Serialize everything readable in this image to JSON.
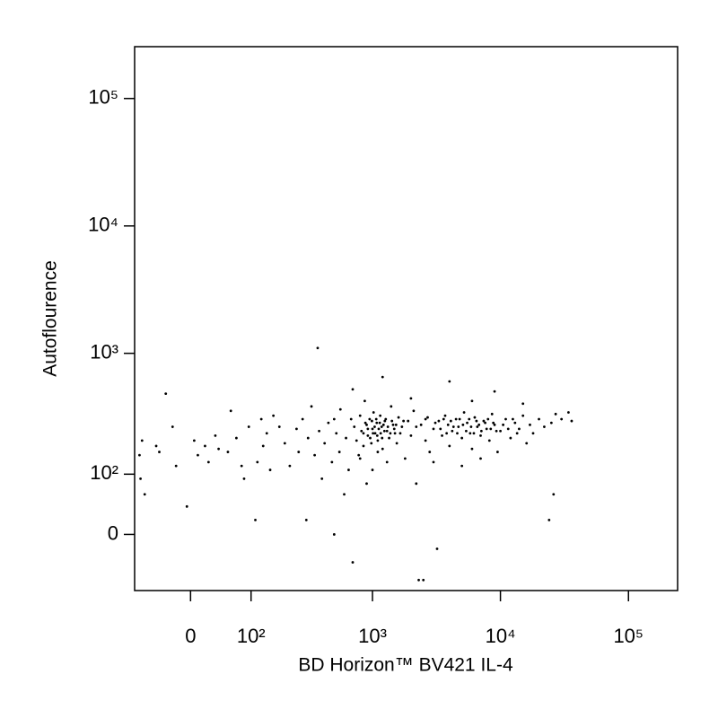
{
  "chart_data": {
    "type": "scatter",
    "x_label": "BD Horizon™ BV421 IL-4",
    "y_label": "Autoflourence",
    "xscale": "biexponential",
    "yscale": "biexponential",
    "xlim": [
      -90,
      242000
    ],
    "ylim": [
      -91,
      255000
    ],
    "xticks": [
      0,
      {
        "value": 100,
        "label": "10²"
      },
      {
        "value": 1000,
        "label": "10³"
      },
      {
        "value": 10000,
        "label": "10⁴"
      },
      {
        "value": 100000,
        "label": "10⁵"
      }
    ],
    "yticks": [
      0,
      {
        "value": 100,
        "label": "10²"
      },
      {
        "value": 1000,
        "label": "10³"
      },
      {
        "value": 10000,
        "label": "10⁴"
      },
      {
        "value": 100000,
        "label": "10⁵"
      }
    ],
    "color": "#000000",
    "x": [
      -80,
      -78,
      -75,
      -70,
      -50,
      -45,
      -35,
      -25,
      -20,
      -5,
      5,
      10,
      20,
      25,
      35,
      40,
      55,
      60,
      70,
      80,
      85,
      95,
      110,
      115,
      125,
      130,
      140,
      150,
      160,
      180,
      200,
      220,
      250,
      260,
      280,
      300,
      310,
      330,
      350,
      370,
      380,
      400,
      420,
      450,
      480,
      500,
      520,
      550,
      560,
      600,
      620,
      650,
      680,
      700,
      720,
      750,
      780,
      800,
      820,
      850,
      870,
      900,
      920,
      950,
      980,
      1000,
      1020,
      1050,
      1080,
      1100,
      1150,
      1180,
      1200,
      1250,
      1300,
      1350,
      1400,
      1450,
      1500,
      1550,
      1600,
      1700,
      1800,
      1900,
      2000,
      2100,
      2200,
      2300,
      2400,
      2500,
      2600,
      2700,
      2800,
      3000,
      3200,
      3300,
      3500,
      3700,
      3900,
      4000,
      4200,
      4500,
      4700,
      5000,
      5200,
      5500,
      5800,
      6000,
      6300,
      6600,
      7000,
      7400,
      7800,
      8200,
      8600,
      9000,
      9500,
      10000,
      11000,
      12000,
      13000,
      14000,
      15000,
      16000,
      17000,
      18000,
      20000,
      22000,
      24000,
      25000,
      27000,
      30000,
      34000,
      36000,
      26000,
      9000,
      4000,
      1200,
      700,
      2000,
      6000,
      15000,
      500,
      800,
      1000,
      1100,
      900,
      1300,
      5000,
      7000,
      3000,
      850,
      880,
      920,
      960,
      990,
      1010,
      1040,
      1070,
      1090,
      1120,
      1140,
      1160,
      1190,
      1220,
      1240,
      1270,
      1320,
      1380,
      1420,
      1480,
      1530,
      1650,
      1750,
      2200,
      2600,
      3100,
      3400,
      3600,
      3800,
      4100,
      4300,
      4600,
      4800,
      5100,
      5400,
      5700,
      5900,
      6200,
      6500,
      6800,
      7100,
      7600,
      8000,
      8400,
      8800,
      9300,
      10500,
      11500,
      12500,
      13500
    ],
    "values": [
      150,
      90,
      200,
      60,
      180,
      160,
      480,
      260,
      120,
      40,
      200,
      150,
      180,
      130,
      220,
      170,
      160,
      350,
      210,
      120,
      90,
      260,
      20,
      130,
      300,
      180,
      230,
      110,
      320,
      260,
      190,
      120,
      250,
      160,
      300,
      20,
      210,
      380,
      150,
      1100,
      240,
      90,
      190,
      280,
      130,
      0,
      230,
      160,
      360,
      60,
      210,
      110,
      300,
      -40,
      260,
      200,
      150,
      320,
      240,
      180,
      420,
      270,
      220,
      300,
      190,
      250,
      340,
      230,
      280,
      200,
      320,
      260,
      170,
      290,
      240,
      210,
      380,
      270,
      230,
      190,
      310,
      260,
      140,
      290,
      220,
      350,
      80,
      -70,
      270,
      -70,
      200,
      310,
      160,
      250,
      -20,
      290,
      220,
      320,
      270,
      180,
      240,
      300,
      260,
      210,
      340,
      280,
      230,
      170,
      310,
      260,
      220,
      290,
      250,
      200,
      330,
      270,
      160,
      240,
      300,
      210,
      280,
      250,
      320,
      190,
      270,
      230,
      300,
      260,
      20,
      280,
      330,
      300,
      340,
      290,
      60,
      500,
      600,
      650,
      520,
      440,
      420,
      400,
      300,
      140,
      110,
      160,
      80,
      130,
      120,
      140,
      130,
      230,
      280,
      250,
      210,
      290,
      230,
      260,
      300,
      220,
      250,
      280,
      230,
      210,
      270,
      240,
      300,
      260,
      230,
      290,
      250,
      270,
      230,
      290,
      260,
      300,
      280,
      250,
      300,
      230,
      290,
      260,
      230,
      300,
      270,
      240,
      300,
      260,
      230,
      290,
      270,
      240,
      280,
      300,
      250,
      280,
      240,
      270,
      250,
      300,
      230
    ]
  }
}
